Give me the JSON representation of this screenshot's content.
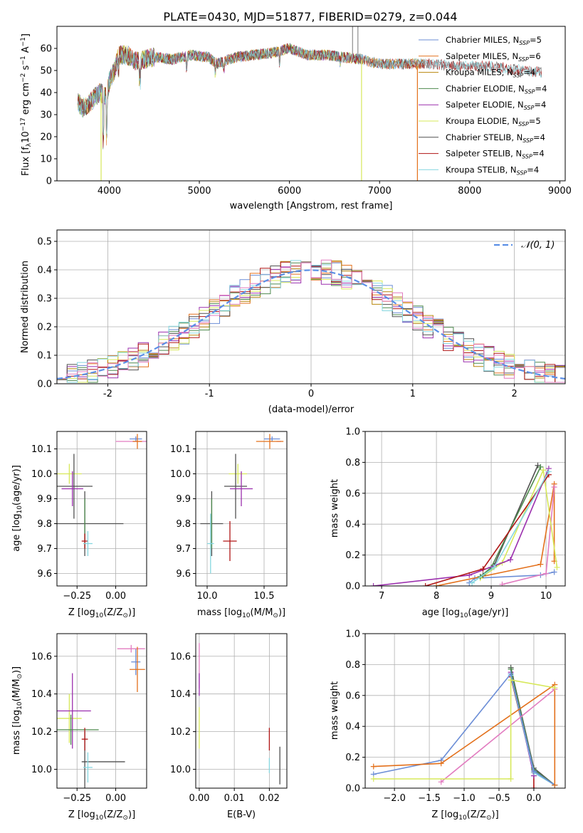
{
  "figure_title": "PLATE=0430, MJD=51877, FIBERID=0279, z=0.044",
  "colors": {
    "Chabrier MILES": "#6b8dd6",
    "Salpeter MILES": "#e3701b",
    "Kroupa MILES": "#b8860b",
    "Chabrier ELODIE": "#4e8a4e",
    "Salpeter ELODIE": "#9b2fae",
    "Kroupa ELODIE": "#d7e85a",
    "Chabrier STELIB": "#505050",
    "Salpeter STELIB": "#b01515",
    "Kroupa STELIB": "#86d7e0",
    "pink": "#e27cc0",
    "gaussian": "#5b8fe6"
  },
  "chart_data": [
    {
      "id": "spectrum",
      "type": "line",
      "xlabel": "wavelength [Angstrom, rest frame]",
      "ylabel_parts": [
        "Flux [",
        "f",
        "λ",
        "10",
        "−17",
        " erg cm",
        "−2",
        " s",
        "−1",
        " A",
        "−1",
        "]"
      ],
      "xlim": [
        3420,
        9060
      ],
      "ylim": [
        0,
        70
      ],
      "xticks": [
        4000,
        5000,
        6000,
        7000,
        8000,
        9000
      ],
      "yticks": [
        0,
        10,
        20,
        30,
        40,
        50,
        60
      ],
      "grid": false,
      "legend_position": "upper right",
      "legend": [
        {
          "name": "Chabrier MILES",
          "n": "5"
        },
        {
          "name": "Salpeter MILES",
          "n": "6"
        },
        {
          "name": "Kroupa MILES",
          "n": "4"
        },
        {
          "name": "Chabrier ELODIE",
          "n": "4"
        },
        {
          "name": "Salpeter ELODIE",
          "n": "4"
        },
        {
          "name": "Kroupa ELODIE",
          "n": "5"
        },
        {
          "name": "Chabrier STELIB",
          "n": "4"
        },
        {
          "name": "Salpeter STELIB",
          "n": "4"
        },
        {
          "name": "Kroupa STELIB",
          "n": "4"
        }
      ],
      "continuum": [
        [
          3650,
          36
        ],
        [
          3700,
          33
        ],
        [
          3760,
          34
        ],
        [
          3820,
          37
        ],
        [
          3900,
          40
        ],
        [
          3970,
          38
        ],
        [
          4000,
          45
        ],
        [
          4060,
          50
        ],
        [
          4100,
          57
        ],
        [
          4200,
          57
        ],
        [
          4300,
          54
        ],
        [
          4500,
          56
        ],
        [
          4700,
          55
        ],
        [
          4900,
          57
        ],
        [
          5100,
          56
        ],
        [
          5200,
          53
        ],
        [
          5400,
          56
        ],
        [
          5600,
          57
        ],
        [
          5800,
          58
        ],
        [
          6000,
          60
        ],
        [
          6200,
          57
        ],
        [
          6400,
          57
        ],
        [
          6600,
          56
        ],
        [
          6800,
          55
        ],
        [
          7000,
          53
        ],
        [
          7200,
          53
        ],
        [
          7400,
          53
        ],
        [
          7600,
          53
        ],
        [
          7800,
          52
        ],
        [
          8000,
          52
        ],
        [
          8200,
          52
        ],
        [
          8400,
          51
        ],
        [
          8600,
          50
        ],
        [
          8800,
          49
        ]
      ],
      "series_ranges": [
        {
          "name": "Chabrier MILES",
          "x": [
            3650,
            7500
          ]
        },
        {
          "name": "Salpeter MILES",
          "x": [
            3650,
            7500
          ]
        },
        {
          "name": "Kroupa MILES",
          "x": [
            3650,
            7500
          ]
        },
        {
          "name": "Chabrier ELODIE",
          "x": [
            3650,
            6800
          ]
        },
        {
          "name": "Salpeter ELODIE",
          "x": [
            3650,
            6800
          ]
        },
        {
          "name": "Kroupa ELODIE",
          "x": [
            3650,
            6800
          ]
        },
        {
          "name": "Chabrier STELIB",
          "x": [
            3650,
            8800
          ]
        },
        {
          "name": "Salpeter STELIB",
          "x": [
            3650,
            8800
          ]
        },
        {
          "name": "Kroupa STELIB",
          "x": [
            3650,
            8800
          ]
        }
      ]
    },
    {
      "id": "residuals",
      "type": "histogram",
      "xlabel": "(data-model)/error",
      "ylabel": "Normed distribution",
      "xlim": [
        -2.5,
        2.5
      ],
      "ylim": [
        0,
        0.54
      ],
      "xticks": [
        -2,
        -1,
        0,
        1,
        2
      ],
      "yticks": [
        0.0,
        0.1,
        0.2,
        0.3,
        0.4,
        0.5
      ],
      "grid": true,
      "legend_position": "upper right",
      "legend_label": "𝒩(0, 1)",
      "bin_width": 0.1,
      "x_range": [
        -2.5,
        2.5
      ]
    },
    {
      "id": "age_vs_Z",
      "type": "errorbar",
      "xlabel_parts": [
        "Z [log",
        "10",
        "(Z/Z",
        "⊙",
        ")]"
      ],
      "ylabel_parts": [
        "age  [log",
        "10",
        "(age/yr)]"
      ],
      "xlim": [
        -0.38,
        0.2
      ],
      "ylim": [
        9.55,
        10.17
      ],
      "xticks": [
        -0.25,
        0.0
      ],
      "xtick_labels": [
        "−0.25",
        "0.00"
      ],
      "yticks": [
        9.6,
        9.7,
        9.8,
        9.9,
        10.0,
        10.1
      ],
      "grid": true,
      "points": [
        {
          "series": "Chabrier MILES",
          "x": 0.13,
          "y": 10.14,
          "dx": 0.04,
          "dy": 0.01
        },
        {
          "series": "pink",
          "x": 0.1,
          "y": 10.13,
          "dx": 0.1,
          "dy": 0.0
        },
        {
          "series": "Salpeter MILES",
          "x": 0.14,
          "y": 10.13,
          "dx": 0.03,
          "dy": 0.03
        },
        {
          "series": "Kroupa ELODIE",
          "x": -0.3,
          "y": 10.0,
          "dx": 0.08,
          "dy": 0.04
        },
        {
          "series": "Chabrier STELIB",
          "x": -0.27,
          "y": 9.95,
          "dx": 0.12,
          "dy": 0.13
        },
        {
          "series": "Salpeter ELODIE",
          "x": -0.28,
          "y": 9.94,
          "dx": 0.07,
          "dy": 0.07
        },
        {
          "series": "Chabrier STELIB",
          "x": -0.2,
          "y": 9.8,
          "dx": 0.25,
          "dy": 0.13
        },
        {
          "series": "Chabrier ELODIE",
          "x": -0.2,
          "y": 9.8,
          "dx": 0.0,
          "dy": 0.1
        },
        {
          "series": "Salpeter STELIB",
          "x": -0.2,
          "y": 9.73,
          "dx": 0.02,
          "dy": 0.03
        },
        {
          "series": "Kroupa STELIB",
          "x": -0.18,
          "y": 9.72,
          "dx": 0.03,
          "dy": 0.05
        }
      ]
    },
    {
      "id": "age_vs_mass",
      "type": "errorbar",
      "xlabel_parts": [
        "mass [log",
        "10",
        "(M/M",
        "⊙",
        ")]"
      ],
      "ylabel_parts": [],
      "xlim": [
        9.9,
        10.7
      ],
      "ylim": [
        9.55,
        10.17
      ],
      "xticks": [
        10.0,
        10.5
      ],
      "xtick_labels": [
        "10.0",
        "10.5"
      ],
      "yticks": [
        9.6,
        9.7,
        9.8,
        9.9,
        10.0,
        10.1
      ],
      "grid": true,
      "points": [
        {
          "series": "Chabrier MILES",
          "x": 10.57,
          "y": 10.14,
          "dx": 0.07,
          "dy": 0.01
        },
        {
          "series": "pink",
          "x": 10.63,
          "y": 10.13,
          "dx": 0.02,
          "dy": 0.0
        },
        {
          "series": "Salpeter MILES",
          "x": 10.55,
          "y": 10.13,
          "dx": 0.12,
          "dy": 0.03
        },
        {
          "series": "Kroupa ELODIE",
          "x": 10.27,
          "y": 10.0,
          "dx": 0.08,
          "dy": 0.04
        },
        {
          "series": "Chabrier STELIB",
          "x": 10.25,
          "y": 9.95,
          "dx": 0.1,
          "dy": 0.13
        },
        {
          "series": "Salpeter ELODIE",
          "x": 10.3,
          "y": 9.94,
          "dx": 0.1,
          "dy": 0.07
        },
        {
          "series": "Chabrier STELIB",
          "x": 10.04,
          "y": 9.8,
          "dx": 0.1,
          "dy": 0.13
        },
        {
          "series": "Chabrier ELODIE",
          "x": 10.04,
          "y": 9.8,
          "dx": 0.0,
          "dy": 0.1
        },
        {
          "series": "Salpeter STELIB",
          "x": 10.2,
          "y": 9.73,
          "dx": 0.06,
          "dy": 0.08
        },
        {
          "series": "Kroupa STELIB",
          "x": 10.03,
          "y": 9.72,
          "dx": 0.03,
          "dy": 0.12
        }
      ]
    },
    {
      "id": "weight_vs_age",
      "type": "line",
      "xlabel_parts": [
        "age  [log",
        "10",
        "(age/yr)]"
      ],
      "ylabel": "mass weight",
      "xlim": [
        6.7,
        10.35
      ],
      "ylim": [
        0,
        1.0
      ],
      "xticks": [
        7,
        8,
        9,
        10
      ],
      "yticks": [
        0.0,
        0.2,
        0.4,
        0.6,
        0.8,
        1.0
      ],
      "grid": true,
      "series": [
        {
          "name": "Chabrier MILES",
          "x": [
            8.6,
            8.7,
            9.9,
            10.15
          ],
          "y": [
            0.02,
            0.05,
            0.07,
            0.09
          ]
        },
        {
          "name": "Salpeter MILES",
          "x": [
            8.0,
            9.9,
            10.15,
            10.15
          ],
          "y": [
            0.0,
            0.14,
            0.66,
            0.16
          ]
        },
        {
          "name": "pink",
          "x": [
            9.2,
            10.0,
            10.15
          ],
          "y": [
            0.01,
            0.08,
            0.64
          ]
        },
        {
          "name": "Kroupa ELODIE",
          "x": [
            8.8,
            9.2,
            9.95,
            10.2
          ],
          "y": [
            0.05,
            0.15,
            0.75,
            0.12
          ]
        },
        {
          "name": "Chabrier STELIB",
          "x": [
            8.85,
            9.05,
            9.85
          ],
          "y": [
            0.07,
            0.13,
            0.78
          ]
        },
        {
          "name": "Chabrier ELODIE",
          "x": [
            8.8,
            9.0,
            9.9
          ],
          "y": [
            0.06,
            0.12,
            0.77
          ]
        },
        {
          "name": "Salpeter ELODIE",
          "x": [
            6.85,
            8.6,
            9.35,
            10.05
          ],
          "y": [
            0.0,
            0.07,
            0.17,
            0.76
          ]
        },
        {
          "name": "Salpeter STELIB",
          "x": [
            7.8,
            8.85,
            10.05
          ],
          "y": [
            0.0,
            0.11,
            0.72
          ]
        },
        {
          "name": "Kroupa STELIB",
          "x": [
            8.65,
            9.05,
            10.05
          ],
          "y": [
            0.02,
            0.12,
            0.74
          ]
        }
      ]
    },
    {
      "id": "mass_vs_Z",
      "type": "errorbar",
      "xlabel_parts": [
        "Z [log",
        "10",
        "(Z/Z",
        "⊙",
        ")]"
      ],
      "ylabel_parts": [
        "mass [log",
        "10",
        "(M/M",
        "⊙",
        ")]"
      ],
      "xlim": [
        -0.38,
        0.2
      ],
      "ylim": [
        9.9,
        10.72
      ],
      "xticks": [
        -0.25,
        0.0
      ],
      "xtick_labels": [
        "−0.25",
        "0.00"
      ],
      "yticks": [
        10.0,
        10.2,
        10.4,
        10.6
      ],
      "grid": true,
      "points": [
        {
          "series": "Chabrier MILES",
          "x": 0.13,
          "y": 10.57,
          "dx": 0.03,
          "dy": 0.07
        },
        {
          "series": "pink",
          "x": 0.1,
          "y": 10.64,
          "dx": 0.09,
          "dy": 0.02
        },
        {
          "series": "Salpeter MILES",
          "x": 0.14,
          "y": 10.53,
          "dx": 0.05,
          "dy": 0.12
        },
        {
          "series": "Kroupa ELODIE",
          "x": -0.3,
          "y": 10.27,
          "dx": 0.08,
          "dy": 0.13
        },
        {
          "series": "Salpeter ELODIE",
          "x": -0.28,
          "y": 10.31,
          "dx": 0.12,
          "dy": 0.2
        },
        {
          "series": "Chabrier ELODIE",
          "x": -0.29,
          "y": 10.21,
          "dx": 0.18,
          "dy": 0.08
        },
        {
          "series": "Chabrier STELIB",
          "x": -0.08,
          "y": 10.04,
          "dx": 0.14,
          "dy": 0.0
        },
        {
          "series": "Chabrier STELIB",
          "x": -0.2,
          "y": 10.05,
          "dx": 0.0,
          "dy": 0.15
        },
        {
          "series": "Salpeter STELIB",
          "x": -0.2,
          "y": 10.16,
          "dx": 0.02,
          "dy": 0.06
        },
        {
          "series": "Kroupa STELIB",
          "x": -0.18,
          "y": 10.01,
          "dx": 0.03,
          "dy": 0.08
        }
      ]
    },
    {
      "id": "mass_vs_EBV",
      "type": "errorbar",
      "xlabel": "E(B-V)",
      "xlim": [
        -0.001,
        0.025
      ],
      "ylim": [
        9.9,
        10.72
      ],
      "xticks": [
        0.0,
        0.01,
        0.02
      ],
      "xtick_labels": [
        "0.00",
        "0.01",
        "0.02"
      ],
      "yticks": [
        10.0,
        10.2,
        10.4,
        10.6
      ],
      "grid": true,
      "points": [
        {
          "series": "pink",
          "x": 0.0,
          "y": 10.55,
          "dx": 0.0,
          "dy": 0.12
        },
        {
          "series": "Salpeter ELODIE",
          "x": 0.0,
          "y": 10.45,
          "dx": 0.0,
          "dy": 0.06
        },
        {
          "series": "Kroupa ELODIE",
          "x": 0.0,
          "y": 10.22,
          "dx": 0.0,
          "dy": 0.11
        },
        {
          "series": "Salpeter STELIB",
          "x": 0.02,
          "y": 10.16,
          "dx": 0.0,
          "dy": 0.06
        },
        {
          "series": "Kroupa STELIB",
          "x": 0.02,
          "y": 10.02,
          "dx": 0.0,
          "dy": 0.04
        },
        {
          "series": "Chabrier STELIB",
          "x": 0.023,
          "y": 10.02,
          "dx": 0.0,
          "dy": 0.1
        }
      ]
    },
    {
      "id": "weight_vs_Z",
      "type": "line",
      "xlabel_parts": [
        "Z [log",
        "10",
        "(Z/Z",
        "⊙",
        ")]"
      ],
      "ylabel": "mass weight",
      "xlim": [
        -2.42,
        0.45
      ],
      "ylim": [
        0,
        1.0
      ],
      "xticks": [
        -2.0,
        -1.5,
        -1.0,
        -0.5,
        0.0
      ],
      "xtick_labels": [
        "−2.0",
        "−1.5",
        "−1.0",
        "−0.5",
        "0.0"
      ],
      "yticks": [
        0.0,
        0.2,
        0.4,
        0.6,
        0.8,
        1.0
      ],
      "grid": true,
      "series": [
        {
          "name": "Salpeter STELIB",
          "x": [
            -0.33,
            0.0,
            0.0
          ],
          "y": [
            0.72,
            0.1,
            0.0
          ]
        },
        {
          "name": "Salpeter ELODIE",
          "x": [
            -0.33,
            0.0
          ],
          "y": [
            0.75,
            0.08
          ]
        },
        {
          "name": "Chabrier STELIB",
          "x": [
            -0.33,
            0.0,
            0.3
          ],
          "y": [
            0.78,
            0.13,
            0.02
          ]
        },
        {
          "name": "Chabrier ELODIE",
          "x": [
            -0.33,
            0.0,
            0.3
          ],
          "y": [
            0.77,
            0.12,
            0.02
          ]
        },
        {
          "name": "Kroupa STELIB",
          "x": [
            -0.33,
            0.0,
            0.3
          ],
          "y": [
            0.73,
            0.1,
            0.02
          ]
        },
        {
          "name": "Chabrier MILES",
          "x": [
            -2.3,
            -1.33,
            -0.33,
            0.0,
            0.3
          ],
          "y": [
            0.09,
            0.18,
            0.74,
            0.11,
            0.02
          ]
        },
        {
          "name": "pink",
          "x": [
            -1.33,
            0.3
          ],
          "y": [
            0.04,
            0.64
          ]
        },
        {
          "name": "Salpeter MILES",
          "x": [
            -2.3,
            -1.33,
            0.3,
            0.3
          ],
          "y": [
            0.14,
            0.16,
            0.67,
            0.02
          ]
        },
        {
          "name": "Kroupa ELODIE",
          "x": [
            -2.3,
            -0.33,
            -0.33,
            0.3
          ],
          "y": [
            0.06,
            0.06,
            0.7,
            0.65
          ]
        }
      ]
    }
  ]
}
